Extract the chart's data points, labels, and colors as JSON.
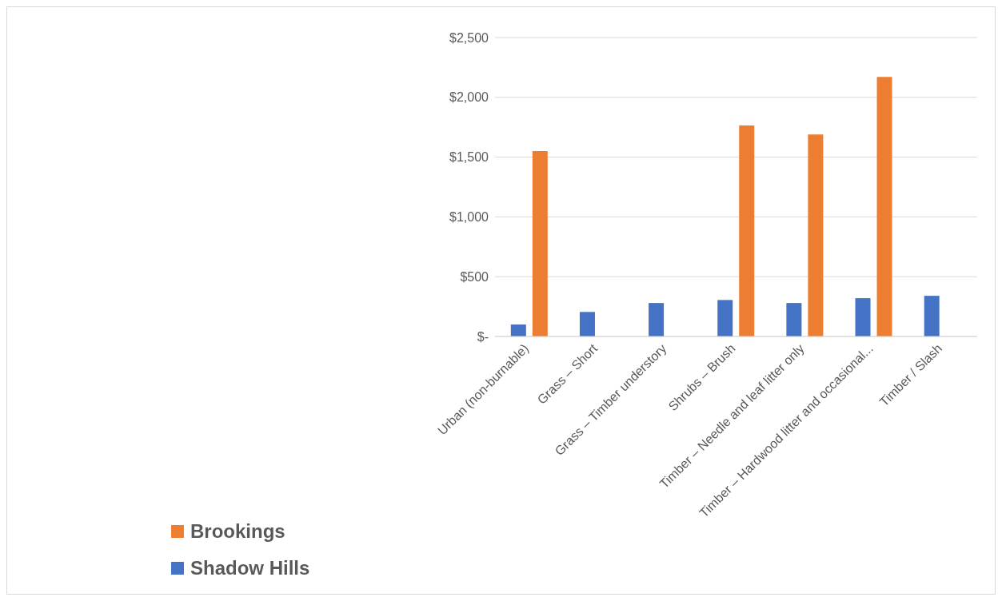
{
  "chart_data": {
    "type": "bar",
    "categories": [
      "Urban (non-burnable)",
      "Grass – Short",
      "Grass – Timber understory",
      "Shrubs – Brush",
      "Timber – Needle and leaf litter only",
      "Timber – Hardwood litter and occasional...",
      "Timber / Slash"
    ],
    "series": [
      {
        "name": "Shadow Hills",
        "color": "#4472c4",
        "values": [
          100,
          205,
          280,
          305,
          280,
          320,
          340
        ]
      },
      {
        "name": "Brookings",
        "color": "#ed7d31",
        "values": [
          1550,
          0,
          0,
          1765,
          1690,
          2170,
          0
        ]
      }
    ],
    "ylim": [
      0,
      2500
    ],
    "yticks": [
      {
        "value": 0,
        "label": "$-"
      },
      {
        "value": 500,
        "label": "$500"
      },
      {
        "value": 1000,
        "label": "$1,000"
      },
      {
        "value": 1500,
        "label": "$1,500"
      },
      {
        "value": 2000,
        "label": "$2,000"
      },
      {
        "value": 2500,
        "label": "$2,500"
      }
    ],
    "grid": "y",
    "legend": "bottom left"
  }
}
